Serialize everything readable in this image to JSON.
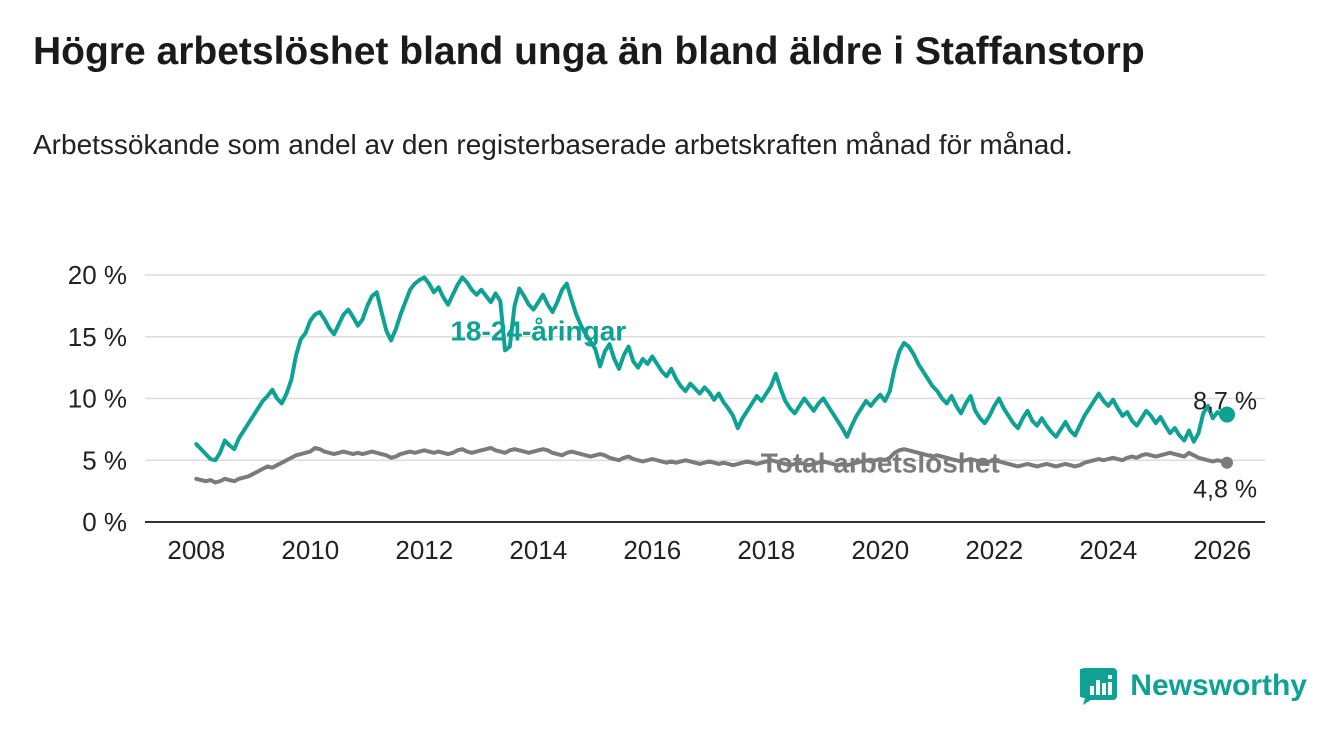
{
  "header": {
    "title": "Högre arbetslöshet bland unga än bland äldre i Staffanstorp",
    "subtitle": "Arbetssökande som andel av den registerbaserade arbetskraften månad för månad."
  },
  "branding": {
    "name": "Newsworthy",
    "color": "#0fa294"
  },
  "chart_data": {
    "type": "line",
    "title": "Högre arbetslöshet bland unga än bland äldre i Staffanstorp",
    "subtitle": "Arbetssökande som andel av den registerbaserade arbetskraften månad för månad.",
    "unit": "%",
    "grid": "horizontal",
    "legend": "inline-annotations",
    "x_start": 2008,
    "x_step_years": 0.0833333,
    "xlim": [
      2007.1,
      2026.75
    ],
    "ylim": [
      0,
      20
    ],
    "y_ticks": [
      {
        "value": 0,
        "label": "0 %"
      },
      {
        "value": 5,
        "label": "5 %"
      },
      {
        "value": 10,
        "label": "10 %"
      },
      {
        "value": 15,
        "label": "15 %"
      },
      {
        "value": 20,
        "label": "20 %"
      }
    ],
    "x_ticks": [
      {
        "value": 2008,
        "label": "2008"
      },
      {
        "value": 2010,
        "label": "2010"
      },
      {
        "value": 2012,
        "label": "2012"
      },
      {
        "value": 2014,
        "label": "2014"
      },
      {
        "value": 2016,
        "label": "2016"
      },
      {
        "value": 2018,
        "label": "2018"
      },
      {
        "value": 2020,
        "label": "2020"
      },
      {
        "value": 2022,
        "label": "2022"
      },
      {
        "value": 2024,
        "label": "2024"
      },
      {
        "value": 2026,
        "label": "2026"
      }
    ],
    "series": [
      {
        "name": "Total arbetslöshet",
        "color": "#7b7b7b",
        "end_label": "4,8 %",
        "end_value": 4.8,
        "end_dot_r": 6,
        "values": [
          3.5,
          3.4,
          3.3,
          3.4,
          3.2,
          3.3,
          3.5,
          3.4,
          3.3,
          3.5,
          3.6,
          3.7,
          3.9,
          4.1,
          4.3,
          4.5,
          4.4,
          4.6,
          4.8,
          5.0,
          5.2,
          5.4,
          5.5,
          5.6,
          5.7,
          6.0,
          5.9,
          5.7,
          5.6,
          5.5,
          5.6,
          5.7,
          5.6,
          5.5,
          5.6,
          5.5,
          5.6,
          5.7,
          5.6,
          5.5,
          5.4,
          5.2,
          5.3,
          5.5,
          5.6,
          5.7,
          5.6,
          5.7,
          5.8,
          5.7,
          5.6,
          5.7,
          5.6,
          5.5,
          5.6,
          5.8,
          5.9,
          5.7,
          5.6,
          5.7,
          5.8,
          5.9,
          6.0,
          5.8,
          5.7,
          5.6,
          5.8,
          5.9,
          5.8,
          5.7,
          5.6,
          5.7,
          5.8,
          5.9,
          5.8,
          5.6,
          5.5,
          5.4,
          5.6,
          5.7,
          5.6,
          5.5,
          5.4,
          5.3,
          5.4,
          5.5,
          5.4,
          5.2,
          5.1,
          5.0,
          5.2,
          5.3,
          5.1,
          5.0,
          4.9,
          5.0,
          5.1,
          5.0,
          4.9,
          4.8,
          4.9,
          4.8,
          4.9,
          5.0,
          4.9,
          4.8,
          4.7,
          4.8,
          4.9,
          4.8,
          4.7,
          4.8,
          4.7,
          4.6,
          4.7,
          4.8,
          4.9,
          4.8,
          4.7,
          4.8,
          4.9,
          5.0,
          4.9,
          4.8,
          4.7,
          4.6,
          4.7,
          4.8,
          4.7,
          4.6,
          4.7,
          4.8,
          4.9,
          4.8,
          4.7,
          4.6,
          4.7,
          4.6,
          4.7,
          4.8,
          4.9,
          5.0,
          4.9,
          5.0,
          5.1,
          5.0,
          5.2,
          5.6,
          5.8,
          5.9,
          5.8,
          5.7,
          5.6,
          5.5,
          5.4,
          5.3,
          5.4,
          5.3,
          5.2,
          5.1,
          5.0,
          4.9,
          5.0,
          5.1,
          5.0,
          4.9,
          4.8,
          4.9,
          5.0,
          4.9,
          4.8,
          4.7,
          4.6,
          4.5,
          4.6,
          4.7,
          4.6,
          4.5,
          4.6,
          4.7,
          4.6,
          4.5,
          4.6,
          4.7,
          4.6,
          4.5,
          4.6,
          4.8,
          4.9,
          5.0,
          5.1,
          5.0,
          5.1,
          5.2,
          5.1,
          5.0,
          5.2,
          5.3,
          5.2,
          5.4,
          5.5,
          5.4,
          5.3,
          5.4,
          5.5,
          5.6,
          5.5,
          5.4,
          5.3,
          5.6,
          5.4,
          5.2,
          5.1,
          5.0,
          4.9,
          5.0,
          4.9,
          4.8
        ]
      },
      {
        "name": "18-24-åringar",
        "color": "#0fa294",
        "end_label": "8,7 %",
        "end_value": 8.7,
        "end_dot_r": 8,
        "values": [
          6.3,
          5.9,
          5.5,
          5.1,
          5.0,
          5.6,
          6.6,
          6.2,
          5.9,
          6.8,
          7.4,
          8.0,
          8.6,
          9.2,
          9.8,
          10.2,
          10.7,
          10.0,
          9.6,
          10.4,
          11.5,
          13.5,
          14.8,
          15.3,
          16.3,
          16.8,
          17.0,
          16.4,
          15.7,
          15.2,
          16.0,
          16.8,
          17.2,
          16.6,
          15.9,
          16.4,
          17.5,
          18.3,
          18.6,
          17.0,
          15.5,
          14.7,
          15.6,
          16.8,
          17.8,
          18.8,
          19.3,
          19.6,
          19.8,
          19.3,
          18.6,
          19.0,
          18.2,
          17.6,
          18.4,
          19.2,
          19.8,
          19.4,
          18.8,
          18.4,
          18.8,
          18.3,
          17.8,
          18.5,
          17.9,
          13.9,
          14.2,
          17.5,
          18.9,
          18.3,
          17.6,
          17.2,
          17.8,
          18.4,
          17.6,
          17.0,
          17.8,
          18.8,
          19.3,
          18.0,
          16.8,
          15.9,
          15.2,
          14.6,
          14.0,
          12.6,
          13.8,
          14.4,
          13.2,
          12.4,
          13.5,
          14.2,
          13.0,
          12.5,
          13.2,
          12.8,
          13.4,
          12.8,
          12.2,
          11.8,
          12.4,
          11.6,
          11.0,
          10.6,
          11.2,
          10.8,
          10.4,
          10.9,
          10.5,
          9.9,
          10.4,
          9.7,
          9.2,
          8.6,
          7.6,
          8.4,
          9.0,
          9.6,
          10.2,
          9.8,
          10.4,
          11.0,
          12.0,
          10.8,
          9.8,
          9.2,
          8.8,
          9.4,
          10.0,
          9.5,
          9.0,
          9.6,
          10.0,
          9.4,
          8.8,
          8.2,
          7.6,
          6.9,
          7.8,
          8.6,
          9.2,
          9.8,
          9.4,
          9.9,
          10.3,
          9.8,
          10.6,
          12.4,
          13.8,
          14.5,
          14.2,
          13.6,
          12.8,
          12.2,
          11.6,
          11.0,
          10.6,
          10.0,
          9.6,
          10.2,
          9.4,
          8.8,
          9.6,
          10.2,
          9.0,
          8.4,
          8.0,
          8.6,
          9.4,
          10.0,
          9.2,
          8.6,
          8.0,
          7.6,
          8.4,
          9.0,
          8.2,
          7.8,
          8.4,
          7.8,
          7.3,
          6.9,
          7.5,
          8.1,
          7.4,
          7.0,
          7.8,
          8.6,
          9.2,
          9.8,
          10.4,
          9.8,
          9.4,
          9.9,
          9.2,
          8.6,
          8.9,
          8.2,
          7.8,
          8.4,
          9.0,
          8.6,
          8.0,
          8.5,
          7.8,
          7.2,
          7.6,
          7.0,
          6.6,
          7.4,
          6.5,
          7.2,
          8.8,
          9.4,
          8.4,
          8.9,
          8.6,
          8.7
        ]
      }
    ],
    "annotations": [
      {
        "text": "18-24-åringar",
        "x": 2014.0,
        "y": 14.7,
        "color": "#0fa294",
        "bold": true,
        "size": 28
      },
      {
        "text": "Total arbetslöshet",
        "x": 2020.0,
        "y": 4.0,
        "color": "#7b7b7b",
        "bold": true,
        "size": 28
      },
      {
        "text": "8,7 %",
        "x": 2026.05,
        "y": 9.1,
        "color": "#222222",
        "bold": false,
        "size": 25
      },
      {
        "text": "4,8 %",
        "x": 2026.05,
        "y": 2.0,
        "color": "#222222",
        "bold": false,
        "size": 25
      }
    ]
  }
}
